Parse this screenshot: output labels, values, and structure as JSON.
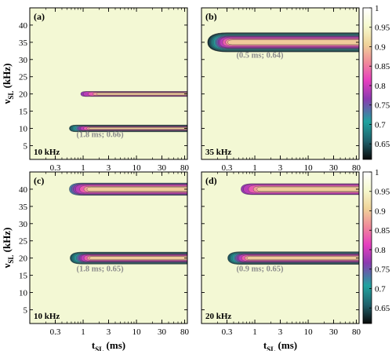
{
  "chart_data": [
    {
      "type": "heatmap",
      "panel_label": "(a)",
      "spin_rate": "10 kHz",
      "xlabel_main": "t",
      "xlabel_sub": "SL",
      "xlabel_unit": " (ms)",
      "ylabel_main": "ν",
      "ylabel_sub": "SL",
      "ylabel_unit": " (kHz)",
      "x_scale": "log",
      "xlim": [
        0.1,
        90
      ],
      "ylim": [
        1,
        45
      ],
      "x_ticks": [
        0.3,
        1,
        3,
        10,
        30,
        80
      ],
      "y_ticks": [
        5,
        10,
        15,
        20,
        25,
        30,
        35,
        40
      ],
      "ridges": [
        {
          "nu": 10,
          "start": 0.55,
          "halfwidth": 1.0,
          "peak": 0.66
        },
        {
          "nu": 20,
          "start": 0.9,
          "halfwidth": 0.75,
          "peak": 0.78
        }
      ],
      "annotation": {
        "text": "(1.8 ms; 0.66)",
        "x": 0.75,
        "y": 7.5
      }
    },
    {
      "type": "heatmap",
      "panel_label": "(b)",
      "spin_rate": "35 kHz",
      "xlabel_main": "t",
      "xlabel_sub": "SL",
      "xlabel_unit": " (ms)",
      "x_scale": "log",
      "xlim": [
        0.1,
        90
      ],
      "ylim": [
        1,
        45
      ],
      "x_ticks": [
        0.3,
        1,
        3,
        10,
        30,
        80
      ],
      "y_ticks": [
        5,
        10,
        15,
        20,
        25,
        30,
        35,
        40
      ],
      "ridges": [
        {
          "nu": 35,
          "start": 0.13,
          "halfwidth": 2.8,
          "peak": 0.64
        }
      ],
      "annotation": {
        "text": "(0.5 ms; 0.64)",
        "x": 0.45,
        "y": 30.5
      }
    },
    {
      "type": "heatmap",
      "panel_label": "(c)",
      "spin_rate": "10 kHz",
      "xlabel_main": "t",
      "xlabel_sub": "SL",
      "xlabel_unit": " (ms)",
      "ylabel_main": "ν",
      "ylabel_sub": "SL",
      "ylabel_unit": " (kHz)",
      "x_scale": "log",
      "xlim": [
        0.1,
        90
      ],
      "ylim": [
        1,
        45
      ],
      "x_ticks": [
        0.3,
        1,
        3,
        10,
        30,
        80
      ],
      "y_ticks": [
        5,
        10,
        15,
        20,
        25,
        30,
        35,
        40
      ],
      "ridges": [
        {
          "nu": 40,
          "start": 0.55,
          "halfwidth": 1.8,
          "peak": 0.74
        },
        {
          "nu": 20,
          "start": 0.55,
          "halfwidth": 1.8,
          "peak": 0.65
        }
      ],
      "annotation": {
        "text": "(1.8 ms; 0.65)",
        "x": 0.75,
        "y": 16.2
      }
    },
    {
      "type": "heatmap",
      "panel_label": "(d)",
      "spin_rate": "20 kHz",
      "xlabel_main": "t",
      "xlabel_sub": "SL",
      "xlabel_unit": " (ms)",
      "x_scale": "log",
      "xlim": [
        0.1,
        90
      ],
      "ylim": [
        1,
        45
      ],
      "x_ticks": [
        0.3,
        1,
        3,
        10,
        30,
        80
      ],
      "y_ticks": [
        5,
        10,
        15,
        20,
        25,
        30,
        35,
        40
      ],
      "ridges": [
        {
          "nu": 40,
          "start": 0.55,
          "halfwidth": 1.6,
          "peak": 0.78
        },
        {
          "nu": 20,
          "start": 0.3,
          "halfwidth": 1.9,
          "peak": 0.65
        }
      ],
      "annotation": {
        "text": "(0.9 ms; 0.65)",
        "x": 0.45,
        "y": 16.2
      }
    }
  ],
  "colorbar": {
    "min": 0.61,
    "max": 1.0,
    "ticks": [
      0.65,
      0.7,
      0.75,
      0.8,
      0.85,
      0.9,
      0.95,
      1
    ],
    "tick_labels": [
      "0.65",
      "0.7",
      "0.75",
      "0.8",
      "0.85",
      "0.9",
      "0.95",
      "1"
    ],
    "colormap": [
      "#0a0a0a",
      "#1f5f6a",
      "#20a3a0",
      "#8b3ab0",
      "#e63fbf",
      "#f08a9a",
      "#f0d49a",
      "#f6f9cf",
      "#ffffff"
    ]
  },
  "colors": {
    "background_level": "#f3f8d4",
    "annotation": "#8c8c8c"
  }
}
